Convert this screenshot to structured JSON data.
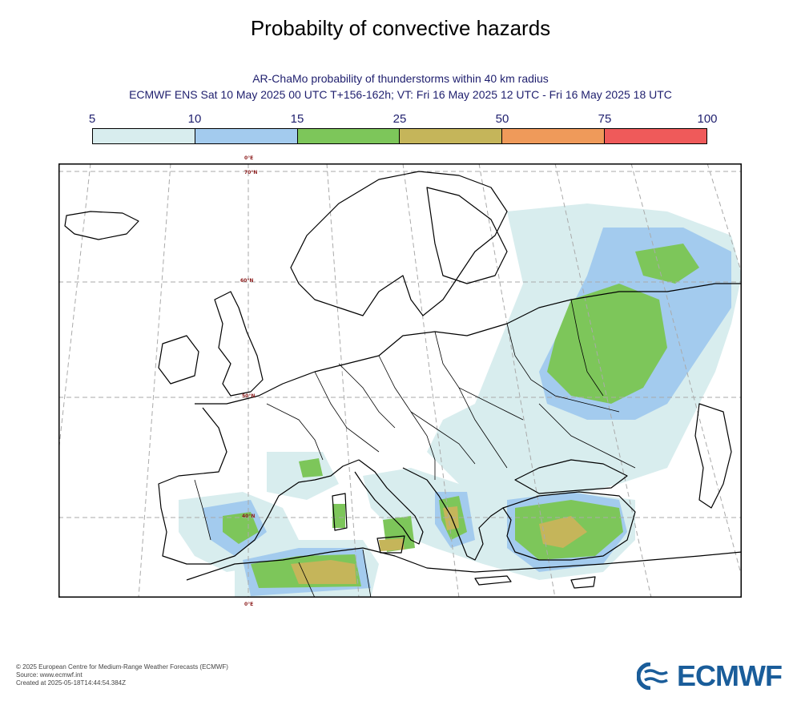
{
  "header": {
    "title": "Probabilty of convective hazards",
    "subtitle_line1": "AR-ChaMo probability of thunderstorms within 40 km radius",
    "subtitle_line2": "ECMWF ENS Sat 10 May 2025 00 UTC T+156-162h; VT: Fri 16 May 2025 12 UTC - Fri 16 May 2025 18 UTC"
  },
  "legend": {
    "ticks": [
      "5",
      "10",
      "15",
      "25",
      "50",
      "75",
      "100"
    ],
    "colors": [
      "#d8edee",
      "#a3cbee",
      "#7dc65a",
      "#c5b55a",
      "#ef9a5a",
      "#ef5a5a"
    ]
  },
  "map": {
    "lat_labels": [
      "70°N",
      "60°N",
      "50°N",
      "40°N"
    ],
    "lon_label_top": "0°E",
    "lon_label_bottom": "0°E",
    "land_color": "#ffffff",
    "coast_color": "#000000",
    "grid_color": "#aaaaaa"
  },
  "footer": {
    "copyright": "© 2025 European Centre for Medium-Range Weather Forecasts (ECMWF)",
    "source": "Source: www.ecmwf.int",
    "created": "Created at 2025-05-18T14:44:54.384Z"
  },
  "logo": {
    "text": "ECMWF",
    "icon": "ecmwf-logo-icon",
    "color": "#1a5d9a"
  }
}
